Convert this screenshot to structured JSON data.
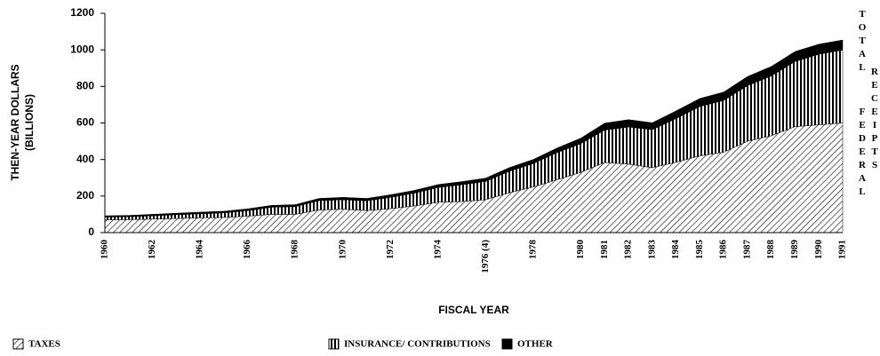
{
  "chart_data": {
    "type": "stacked-area",
    "ylabel": [
      "THEN-YEAR DOLLARS",
      "(BILLIONS)"
    ],
    "xlabel": "FISCAL YEAR",
    "annotations": [
      "TOTAL",
      "FEDERAL",
      "RECEIPTS"
    ],
    "categories": [
      "1960",
      null,
      "1962",
      null,
      "1964",
      null,
      "1966",
      null,
      "1968",
      null,
      "1970",
      null,
      "1972",
      null,
      "1974",
      null,
      "1976 (4)",
      null,
      "1978",
      null,
      "1980",
      "1981",
      "1982",
      "1983",
      "1984",
      "1985",
      "1986",
      "1987",
      "1988",
      "1989",
      "1990",
      "1991"
    ],
    "series": [
      {
        "name": "TAXES",
        "color": "#000000",
        "values": [
          70,
          71,
          74,
          77,
          81,
          83,
          90,
          100,
          100,
          124,
          128,
          121,
          131,
          146,
          166,
          170,
          180,
          218,
          250,
          289,
          330,
          384,
          375,
          355,
          385,
          420,
          440,
          500,
          530,
          580,
          590,
          600
        ]
      },
      {
        "name": "INSURANCE/  CONTRIBUTIONS",
        "color": "#000000",
        "values": [
          15,
          16,
          18,
          21,
          22,
          25,
          30,
          39,
          42,
          51,
          52,
          53,
          62,
          70,
          81,
          92,
          100,
          118,
          128,
          149,
          157,
          177,
          203,
          208,
          239,
          270,
          283,
          304,
          327,
          356,
          386,
          399
        ]
      },
      {
        "name": "OTHER",
        "color": "#000000",
        "values": [
          7,
          7,
          8,
          8,
          9,
          9,
          10,
          10,
          11,
          12,
          13,
          13,
          14,
          15,
          16,
          17,
          18,
          20,
          22,
          25,
          30,
          38,
          40,
          38,
          42,
          44,
          46,
          50,
          52,
          55,
          55,
          55
        ]
      }
    ],
    "ylim": [
      0,
      1200
    ],
    "yticks": [
      0,
      200,
      400,
      600,
      800,
      1000,
      1200
    ]
  }
}
